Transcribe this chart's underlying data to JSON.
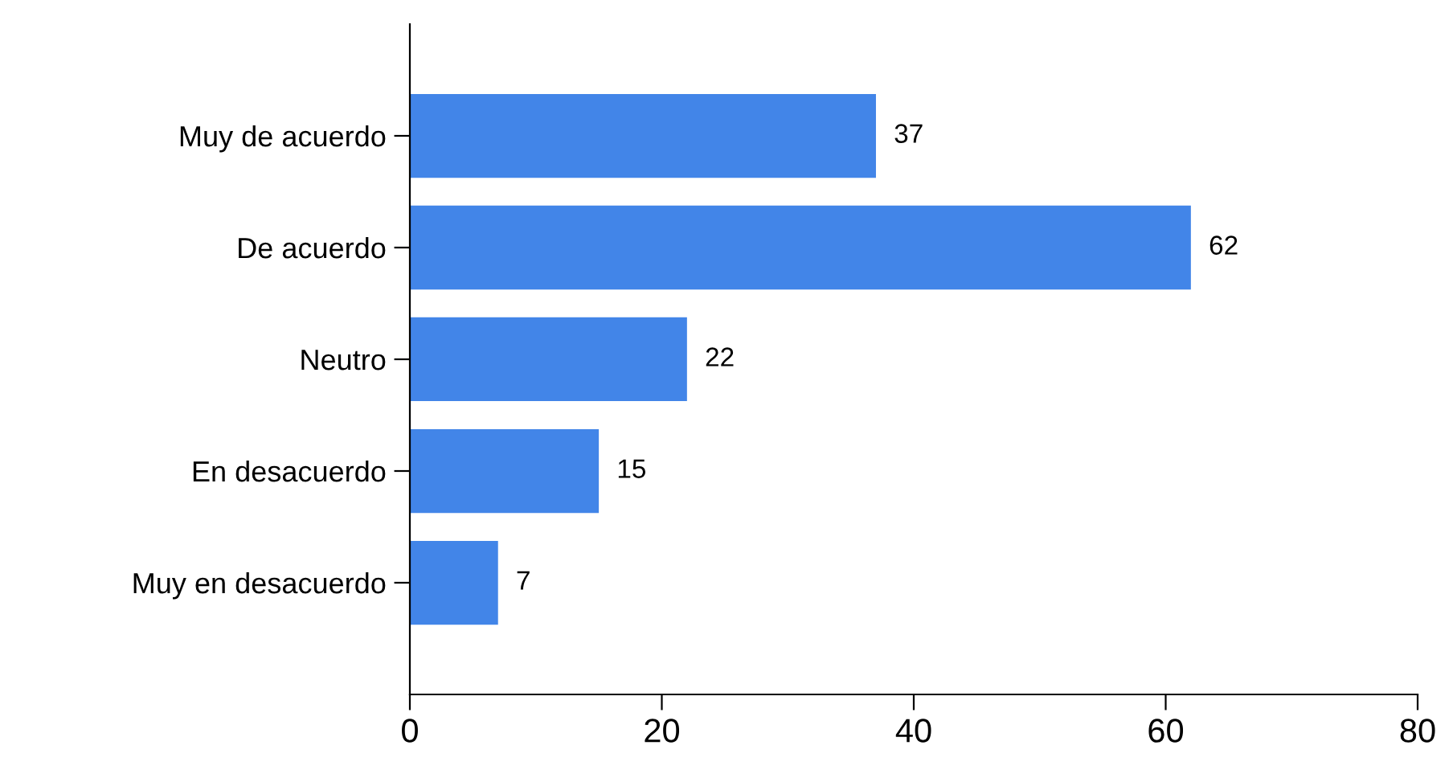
{
  "chart_data": {
    "type": "bar",
    "orientation": "horizontal",
    "categories": [
      "Muy de acuerdo",
      "De acuerdo",
      "Neutro",
      "En desacuerdo",
      "Muy en desacuerdo"
    ],
    "values": [
      37,
      62,
      22,
      15,
      7
    ],
    "color": "#4285e8",
    "xlim": [
      0,
      80
    ],
    "xticks": [
      0,
      20,
      40,
      60,
      80
    ],
    "grid": false,
    "legend": false,
    "data_labels": true
  }
}
